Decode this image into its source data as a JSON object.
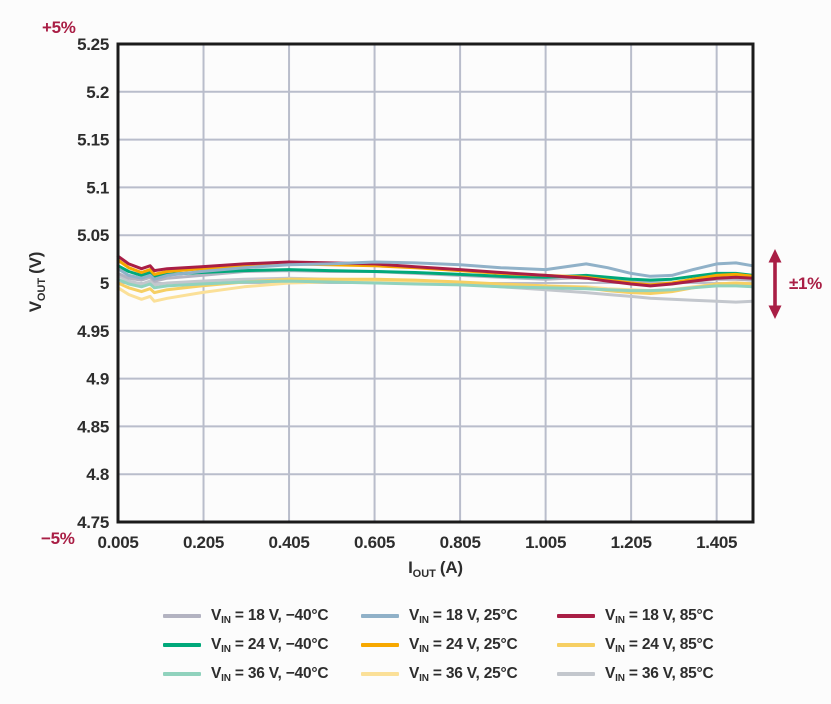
{
  "chart_data": {
    "type": "line",
    "title": "",
    "xlabel": {
      "main": "I",
      "sub": "OUT",
      "unit": "(A)"
    },
    "ylabel": {
      "main": "V",
      "sub": "OUT",
      "unit": "(V)"
    },
    "x_range": [
      0.005,
      1.49
    ],
    "y_range": [
      4.75,
      5.25
    ],
    "grid": true,
    "x_tick_labels": [
      "0.005",
      "0.205",
      "0.405",
      "0.605",
      "0.805",
      "1.005",
      "1.205",
      "1.405"
    ],
    "x_tick_values": [
      0.005,
      0.205,
      0.405,
      0.605,
      0.805,
      1.005,
      1.205,
      1.405
    ],
    "y_tick_labels": [
      "5.25",
      "5.2",
      "5.15",
      "5.1",
      "5.05",
      "5",
      "4.95",
      "4.9",
      "4.85",
      "4.8",
      "4.75"
    ],
    "y_tick_values": [
      5.25,
      5.2,
      5.15,
      5.1,
      5.05,
      5.0,
      4.95,
      4.9,
      4.85,
      4.8,
      4.75
    ],
    "colors": {
      "gridline": "#b9bdcb",
      "axis": "#1b1b1b",
      "text": "#2d2d2d",
      "accent": "#a91e45"
    },
    "annotations": {
      "top_left": "+5%",
      "bottom_left": "−5%",
      "right_arrow": "±1%"
    },
    "x": [
      0.005,
      0.03,
      0.06,
      0.08,
      0.09,
      0.12,
      0.2,
      0.3,
      0.405,
      0.5,
      0.605,
      0.7,
      0.805,
      0.9,
      1.005,
      1.1,
      1.15,
      1.205,
      1.25,
      1.3,
      1.35,
      1.405,
      1.45,
      1.49
    ],
    "series": [
      {
        "vin": "18 V",
        "temp": "−40°C",
        "color": "#b3b3c1",
        "values": [
          5.01,
          5.005,
          5.003,
          5.006,
          5.002,
          5.005,
          5.008,
          5.012,
          5.013,
          5.012,
          5.012,
          5.01,
          5.008,
          5.006,
          5.004,
          5.006,
          5.004,
          5.002,
          5.0,
          5.0,
          5.002,
          5.004,
          5.004,
          5.003
        ]
      },
      {
        "vin": "18 V",
        "temp": "25°C",
        "color": "#90b1c8",
        "values": [
          5.015,
          5.008,
          5.005,
          5.008,
          5.004,
          5.008,
          5.012,
          5.016,
          5.019,
          5.02,
          5.022,
          5.021,
          5.019,
          5.016,
          5.014,
          5.02,
          5.016,
          5.01,
          5.007,
          5.008,
          5.014,
          5.02,
          5.021,
          5.018
        ]
      },
      {
        "vin": "18 V",
        "temp": "85°C",
        "color": "#a91e45",
        "values": [
          5.028,
          5.02,
          5.015,
          5.018,
          5.013,
          5.015,
          5.017,
          5.02,
          5.022,
          5.021,
          5.02,
          5.017,
          5.014,
          5.011,
          5.008,
          5.005,
          5.002,
          4.999,
          4.997,
          4.999,
          5.002,
          5.005,
          5.006,
          5.005
        ]
      },
      {
        "vin": "24 V",
        "temp": "−40°C",
        "color": "#00a87a",
        "values": [
          5.018,
          5.012,
          5.008,
          5.011,
          5.007,
          5.009,
          5.011,
          5.013,
          5.014,
          5.013,
          5.012,
          5.011,
          5.009,
          5.007,
          5.006,
          5.008,
          5.006,
          5.004,
          5.003,
          5.004,
          5.007,
          5.01,
          5.01,
          5.008
        ]
      },
      {
        "vin": "24 V",
        "temp": "25°C",
        "color": "#f7a800",
        "values": [
          5.024,
          5.016,
          5.011,
          5.014,
          5.009,
          5.012,
          5.015,
          5.018,
          5.02,
          5.019,
          5.018,
          5.016,
          5.013,
          5.01,
          5.008,
          5.006,
          5.003,
          5.0,
          4.998,
          5.0,
          5.004,
          5.008,
          5.009,
          5.007
        ]
      },
      {
        "vin": "24 V",
        "temp": "85°C",
        "color": "#f6cf63",
        "values": [
          5.0,
          4.995,
          4.991,
          4.994,
          4.99,
          4.993,
          4.997,
          5.001,
          5.004,
          5.004,
          5.004,
          5.003,
          5.001,
          4.999,
          4.997,
          4.995,
          4.992,
          4.99,
          4.989,
          4.991,
          4.995,
          4.999,
          5.0,
          4.999
        ]
      },
      {
        "vin": "36 V",
        "temp": "−40°C",
        "color": "#90d2bd",
        "values": [
          5.004,
          4.999,
          4.996,
          4.999,
          4.995,
          4.997,
          4.999,
          5.001,
          5.002,
          5.001,
          5.0,
          4.999,
          4.998,
          4.996,
          4.995,
          4.994,
          4.993,
          4.992,
          4.992,
          4.993,
          4.995,
          4.997,
          4.997,
          4.996
        ]
      },
      {
        "vin": "36 V",
        "temp": "25°C",
        "color": "#fbe098",
        "values": [
          4.995,
          4.988,
          4.983,
          4.986,
          4.981,
          4.984,
          4.99,
          4.996,
          5.0,
          5.001,
          5.002,
          5.001,
          5.0,
          4.998,
          4.997,
          4.996,
          4.994,
          4.993,
          4.992,
          4.993,
          4.996,
          4.999,
          5.0,
          4.999
        ]
      },
      {
        "vin": "36 V",
        "temp": "85°C",
        "color": "#c3c7cd",
        "values": [
          5.008,
          5.002,
          4.999,
          5.002,
          4.998,
          5.0,
          5.002,
          5.004,
          5.005,
          5.004,
          5.003,
          5.001,
          4.999,
          4.996,
          4.993,
          4.99,
          4.988,
          4.986,
          4.984,
          4.983,
          4.982,
          4.981,
          4.98,
          4.981
        ]
      }
    ],
    "draw_order": [
      8,
      7,
      5,
      6,
      0,
      3,
      4,
      2,
      1
    ]
  },
  "legend": {
    "prefix_main": "V",
    "prefix_sub": "IN",
    "equals": " = "
  }
}
